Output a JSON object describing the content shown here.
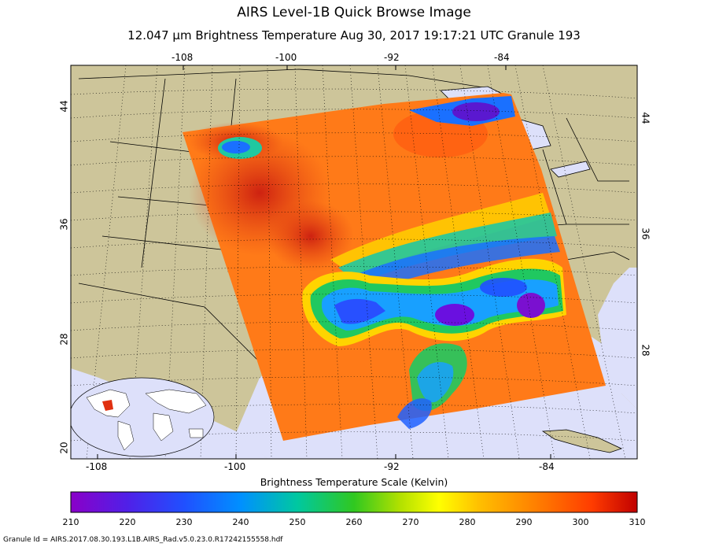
{
  "title": "AIRS Level-1B Quick Browse Image",
  "subtitle": "12.047 µm Brightness Temperature   Aug 30, 2017 19:17:21 UTC  Granule 193",
  "axes": {
    "top_lon_ticks": [
      "-108",
      "-100",
      "-92",
      "-84"
    ],
    "bottom_lon_ticks": [
      "-108",
      "-100",
      "-92",
      "-84"
    ],
    "left_lat_ticks": [
      "44",
      "36",
      "28",
      "20"
    ],
    "right_lat_ticks": [
      "44",
      "36",
      "28"
    ]
  },
  "colorbar": {
    "title": "Brightness Temperature Scale (Kelvin)",
    "ticks": [
      "210",
      "220",
      "230",
      "240",
      "250",
      "260",
      "270",
      "280",
      "290",
      "300",
      "310"
    ],
    "min": 210,
    "max": 310,
    "colors": [
      "#8a00c8",
      "#3a30ff",
      "#0080ff",
      "#00d0c0",
      "#20c020",
      "#a0e000",
      "#ffff00",
      "#ffc000",
      "#ff8000",
      "#ff4000",
      "#c00000"
    ]
  },
  "colors": {
    "land": "#cdc59a",
    "ocean": "#dde0fa",
    "swath_warm": "#ff7a18"
  },
  "granule_id": "Granule Id = AIRS.2017.08.30.193.L1B.AIRS_Rad.v5.0.23.0.R17242155558.hdf"
}
